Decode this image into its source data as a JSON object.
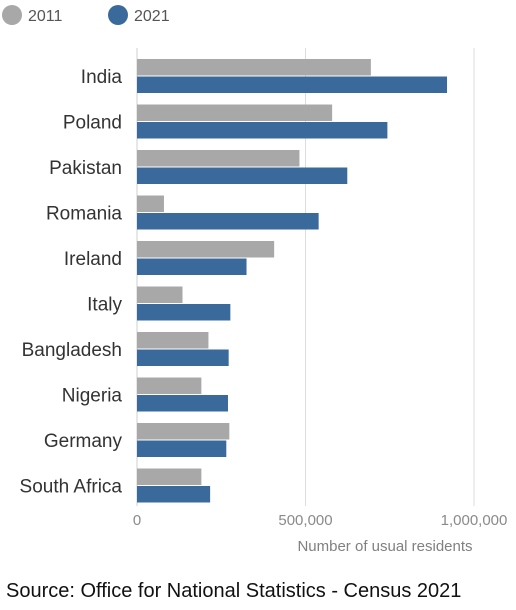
{
  "chart_data": {
    "type": "bar",
    "orientation": "horizontal",
    "categories": [
      "India",
      "Poland",
      "Pakistan",
      "Romania",
      "Ireland",
      "Italy",
      "Bangladesh",
      "Nigeria",
      "Germany",
      "South Africa"
    ],
    "series": [
      {
        "name": "2011",
        "color": "#a8a8a8",
        "values": [
          694000,
          579000,
          482000,
          80000,
          407000,
          135000,
          212000,
          191000,
          274000,
          191000
        ]
      },
      {
        "name": "2021",
        "color": "#3a6a9c",
        "values": [
          920000,
          743000,
          624000,
          539000,
          325000,
          277000,
          272000,
          270000,
          265000,
          217000
        ]
      }
    ],
    "xlabel": "Number of usual residents",
    "xlim": [
      0,
      1000000
    ],
    "xticks": [
      0,
      500000,
      1000000
    ],
    "xtick_labels": [
      "0",
      "500,000",
      "1,000,000"
    ],
    "grid": true,
    "legend_position": "top-left"
  },
  "source": "Source: Office for National Statistics - Census 2021"
}
